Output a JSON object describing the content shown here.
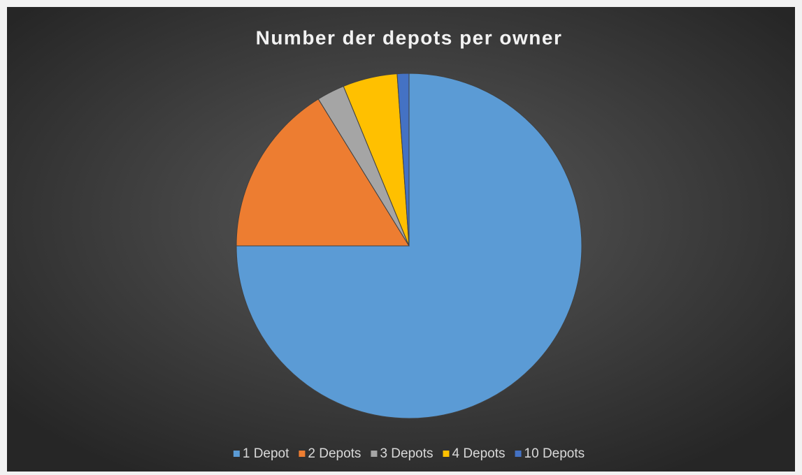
{
  "chart_data": {
    "type": "pie",
    "title": "Number der depots per owner",
    "categories": [
      "1 Depot",
      "2 Depots",
      "3 Depots",
      "4 Depots",
      "10 Depots"
    ],
    "values": [
      75,
      16.2,
      2.6,
      5.1,
      1.1
    ],
    "colors": [
      "#5b9bd5",
      "#ed7d31",
      "#a5a5a5",
      "#ffc000",
      "#4472c4"
    ],
    "legend": "bottom"
  }
}
